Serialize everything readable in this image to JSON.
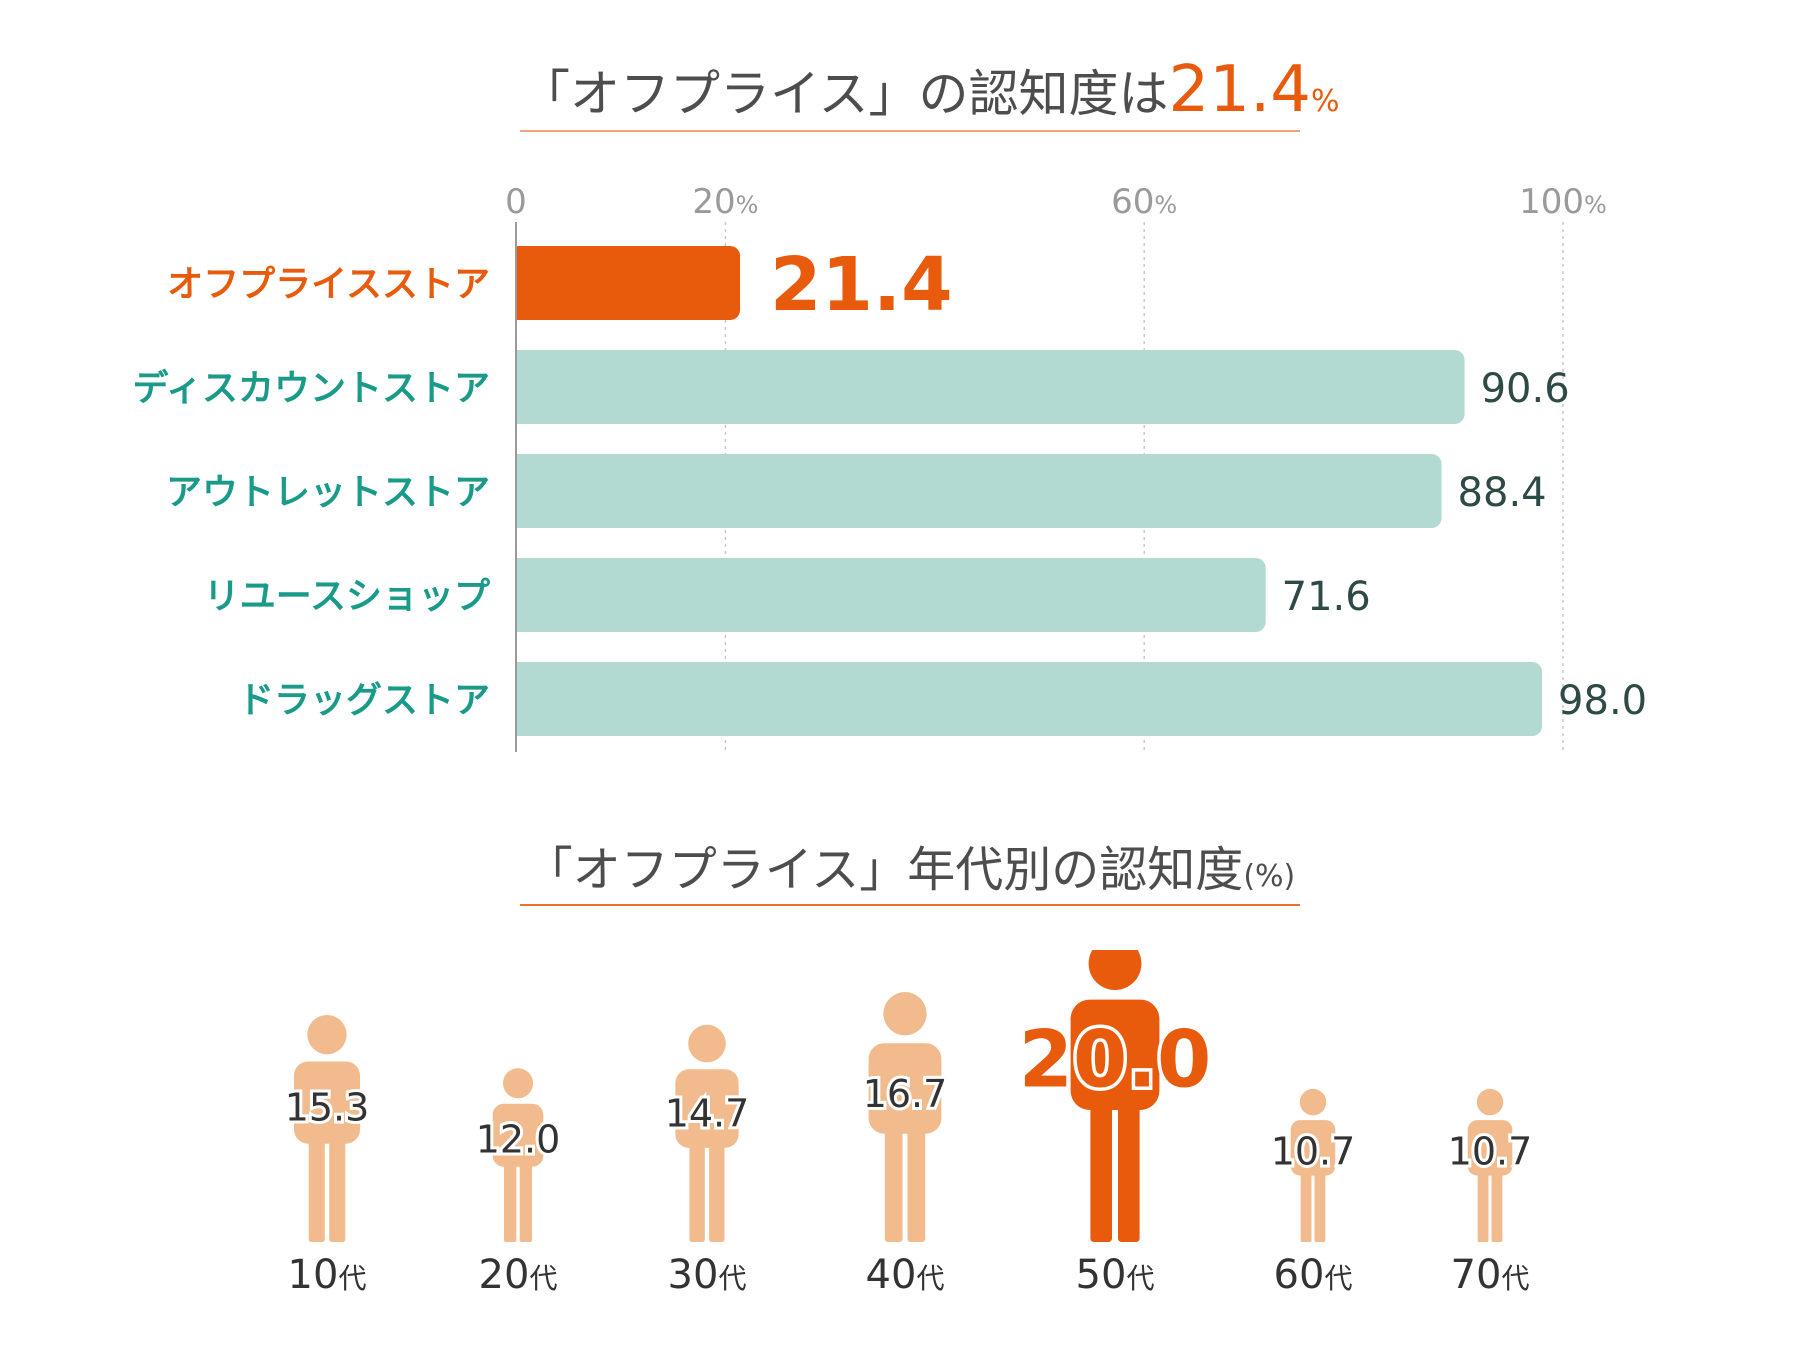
{
  "title_main": {
    "prefix": "「オフプライス」の認知度は",
    "value": "21.4",
    "unit": "%"
  },
  "title_sub": {
    "text": "「オフプライス」年代別の認知度",
    "unit": "(%)"
  },
  "colors": {
    "highlight": "#e85a0c",
    "bar": "#b3d9d3",
    "category_text": "#1a9b8a",
    "value_text": "#2e4a46",
    "axis_text": "#9a9a9a",
    "figure": "#f2bb8e",
    "figure_highlight": "#e85a0c"
  },
  "chart_data": [
    {
      "type": "bar",
      "orientation": "horizontal",
      "title": "「オフプライス」の認知度は21.4%",
      "categories": [
        "オフプライスストア",
        "ディスカウントストア",
        "アウトレットストア",
        "リユースショップ",
        "ドラッグストア"
      ],
      "values": [
        21.4,
        90.6,
        88.4,
        71.6,
        98.0
      ],
      "value_labels": [
        "21.4",
        "90.6",
        "88.4",
        "71.6",
        "98.0"
      ],
      "highlight_index": 0,
      "xlim": [
        0,
        100
      ],
      "ticks": [
        {
          "value": 0,
          "label": "0",
          "unit": ""
        },
        {
          "value": 20,
          "label": "20",
          "unit": "%"
        },
        {
          "value": 60,
          "label": "60",
          "unit": "%"
        },
        {
          "value": 100,
          "label": "100",
          "unit": "%"
        }
      ],
      "grid": true
    },
    {
      "type": "pictogram",
      "title": "「オフプライス」年代別の認知度(%)",
      "categories": [
        "10",
        "20",
        "30",
        "40",
        "50",
        "60",
        "70"
      ],
      "category_suffix": "代",
      "values": [
        15.3,
        12.0,
        14.7,
        16.7,
        20.0,
        10.7,
        10.7
      ],
      "value_labels": [
        "15.3",
        "12.0",
        "14.7",
        "16.7",
        "20.0",
        "10.7",
        "10.7"
      ],
      "highlight_index": 4
    }
  ]
}
